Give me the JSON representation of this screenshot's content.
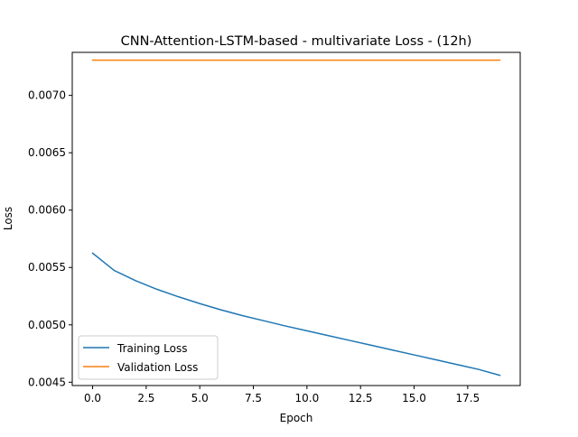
{
  "chart_data": {
    "type": "line",
    "title": "CNN-Attention-LSTM-based - multivariate Loss - (12h)",
    "xlabel": "Epoch",
    "ylabel": "Loss",
    "xlim": [
      -0.95,
      19.95
    ],
    "ylim": [
      0.004471,
      0.007375
    ],
    "grid": false,
    "legend_position": "lower-left",
    "x": [
      0,
      1,
      2,
      3,
      4,
      5,
      6,
      7,
      8,
      9,
      10,
      11,
      12,
      13,
      14,
      15,
      16,
      17,
      18,
      19
    ],
    "xticks": [
      0.0,
      2.5,
      5.0,
      7.5,
      10.0,
      12.5,
      15.0,
      17.5
    ],
    "xtick_labels": [
      "0.0",
      "2.5",
      "5.0",
      "7.5",
      "10.0",
      "12.5",
      "15.0",
      "17.5"
    ],
    "yticks": [
      0.0045,
      0.005,
      0.0055,
      0.006,
      0.0065,
      0.007
    ],
    "ytick_labels": [
      "0.0045",
      "0.0050",
      "0.0055",
      "0.0060",
      "0.0065",
      "0.0070"
    ],
    "series": [
      {
        "name": "Training Loss",
        "color": "#1f77b4",
        "values": [
          0.005625,
          0.005475,
          0.005385,
          0.00531,
          0.005245,
          0.005185,
          0.00513,
          0.00508,
          0.005035,
          0.00499,
          0.004948,
          0.004906,
          0.004864,
          0.004822,
          0.00478,
          0.004738,
          0.004696,
          0.004654,
          0.004612,
          0.00456
        ]
      },
      {
        "name": "Validation Loss",
        "color": "#ff7f0e",
        "values": [
          0.007307,
          0.007307,
          0.007307,
          0.007307,
          0.007307,
          0.007307,
          0.007307,
          0.007307,
          0.007307,
          0.007307,
          0.007307,
          0.007307,
          0.007307,
          0.007307,
          0.007307,
          0.007307,
          0.007307,
          0.007307,
          0.007307,
          0.007307
        ]
      }
    ]
  }
}
